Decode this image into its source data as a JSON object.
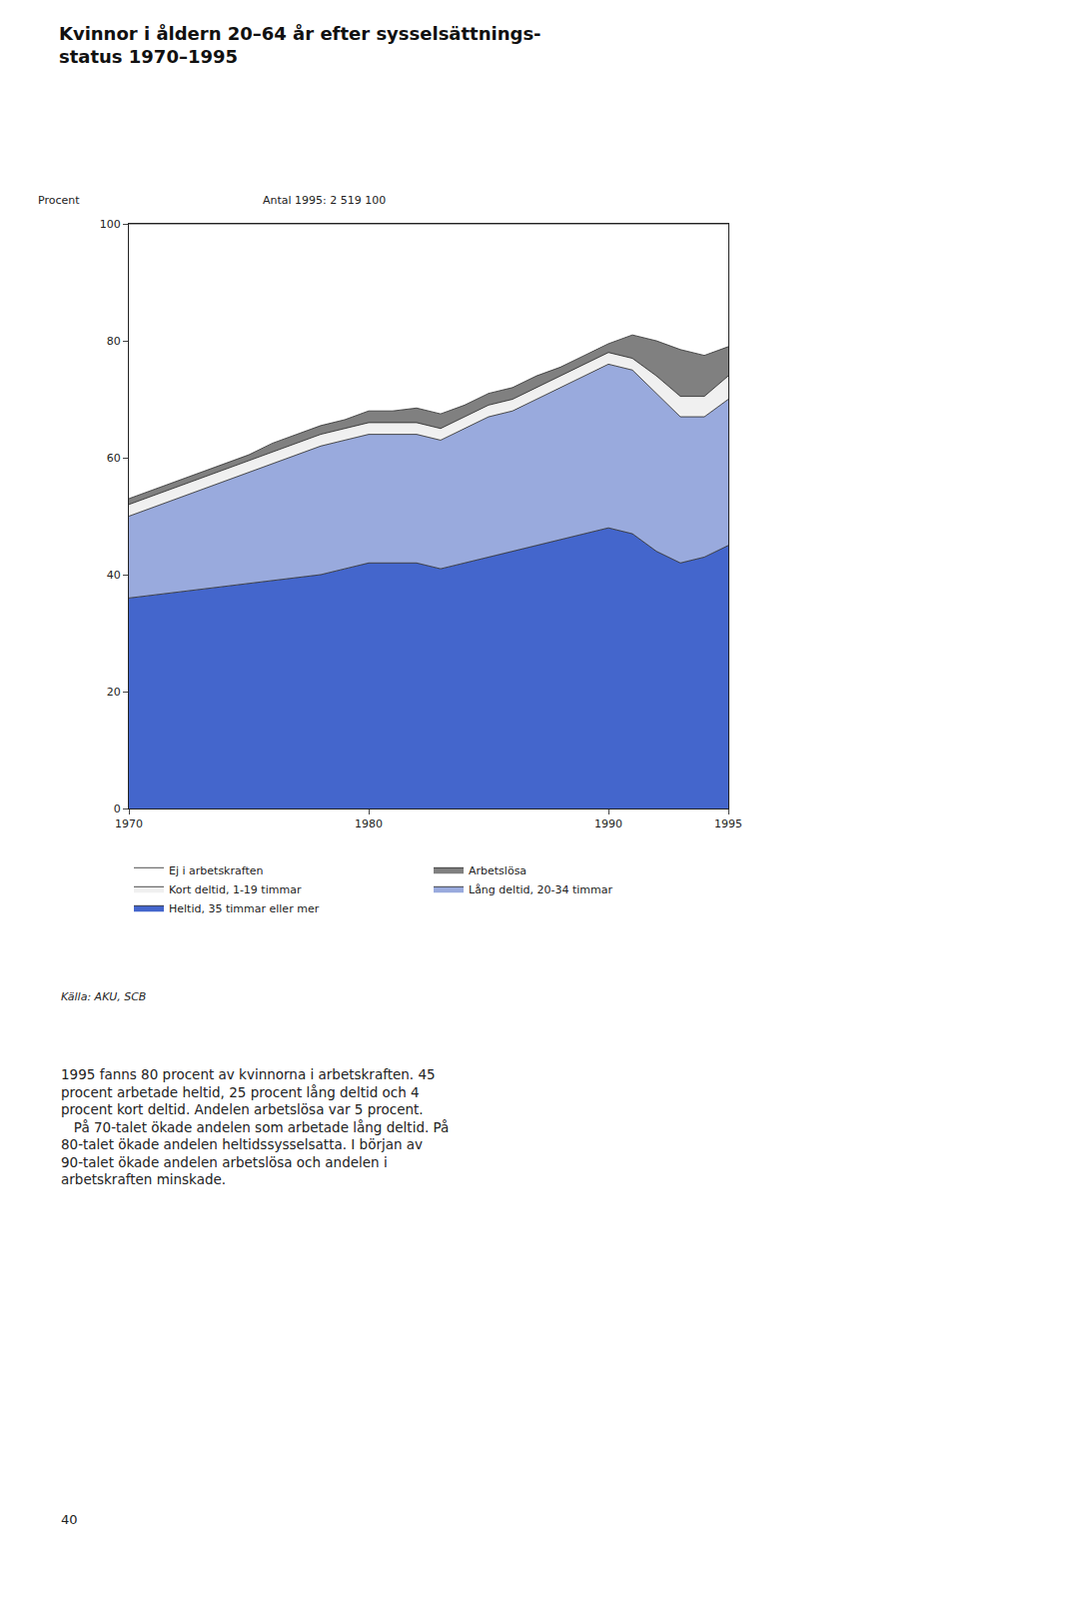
{
  "chart_data": {
    "type": "area",
    "stacked": true,
    "title": "Kvinnor i åldern 20–64 år efter sysselsättnings-\nstatus 1970–1995",
    "ylabel": "Procent",
    "annotations": [
      "Antal 1995: 2 519 100",
      "Källa: AKU, SCB",
      "1995 fanns 80 procent av kvinnorna i arbetskraften. 45\nprocent arbetade heltid, 25 procent lång deltid och 4\nprocent kort deltid. Andelen arbetslösa var 5 procent.\n   På 70-talet ökade andelen som arbetade lång deltid. På\n80-talet ökade andelen heltidssysselsatta. I början av\n90-talet ökade andelen arbetslösa och andelen i\narbetskraften minskade.",
      "40"
    ],
    "x": [
      1970,
      1971,
      1972,
      1973,
      1974,
      1975,
      1976,
      1977,
      1978,
      1979,
      1980,
      1981,
      1982,
      1983,
      1984,
      1985,
      1986,
      1987,
      1988,
      1989,
      1990,
      1991,
      1992,
      1993,
      1994,
      1995
    ],
    "series": [
      {
        "name": "Heltid, 35 timmar eller mer",
        "color": "#4466cc",
        "values": [
          36,
          36.5,
          37,
          37.5,
          38,
          38.5,
          39,
          39.5,
          40,
          41,
          42,
          42,
          42,
          41,
          42,
          43,
          44,
          45,
          46,
          47,
          48,
          47,
          44,
          42,
          43,
          45
        ]
      },
      {
        "name": "Lång deltid, 20-34 timmar",
        "color": "#99aadd",
        "values": [
          14,
          15,
          16,
          17,
          18,
          19,
          20,
          21,
          22,
          22,
          22,
          22,
          22,
          22,
          23,
          24,
          24,
          25,
          26,
          27,
          28,
          28,
          27,
          25,
          24,
          25
        ]
      },
      {
        "name": "Kort deltid, 1-19 timmar",
        "color": "#f0f0f0",
        "values": [
          2,
          2,
          2,
          2,
          2,
          2,
          2,
          2,
          2,
          2,
          2,
          2,
          2,
          2,
          2,
          2,
          2,
          2,
          2,
          2,
          2,
          2,
          3,
          3.5,
          3.5,
          4
        ]
      },
      {
        "name": "Arbetslösa",
        "color": "#808080",
        "values": [
          1,
          1,
          1,
          1,
          1,
          1,
          1.5,
          1.5,
          1.5,
          1.5,
          2,
          2,
          2.5,
          2.5,
          2,
          2,
          2,
          2,
          1.5,
          1.5,
          1.5,
          4,
          6,
          8,
          7,
          5
        ]
      },
      {
        "name": "Ej i arbetskraften",
        "color": "#ffffff",
        "values": [
          47,
          45.5,
          44,
          42.5,
          41,
          39.5,
          37.5,
          36,
          34.5,
          33.5,
          32,
          32,
          31.5,
          32.5,
          31,
          29,
          28,
          26,
          24.5,
          22.5,
          20.5,
          19,
          20,
          21.5,
          22.5,
          21
        ]
      }
    ],
    "xlim": [
      1970,
      1995
    ],
    "xticks": [
      1970,
      1980,
      1990,
      1995
    ],
    "ylim": [
      0,
      100
    ],
    "yticks": [
      0,
      20,
      40,
      60,
      80,
      100
    ],
    "grid": false,
    "legend": "bottom"
  }
}
